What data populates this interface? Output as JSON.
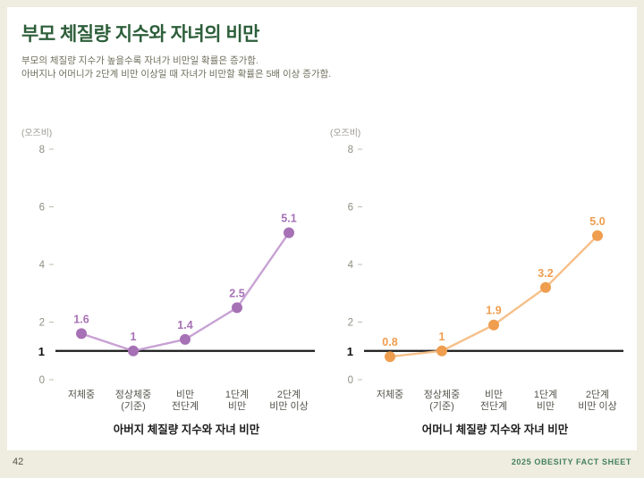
{
  "slide": {
    "title": "부모 체질량 지수와 자녀의 비만",
    "subtitle_line1": "부모의 체질량 지수가 높을수록 자녀가 비만일 확률은 증가함.",
    "subtitle_line2": "아버지나 어머니가 2단계 비만 이상일 때 자녀가 비만할 확률은 5배 이상 증가함.",
    "page_number": "42",
    "footer": "2025 OBESITY FACT SHEET"
  },
  "colors": {
    "title_green": "#2d5e3a",
    "footer_green": "#43815a",
    "background": "#efece0",
    "baseline": "#1a1a1a",
    "tick_text": "#8f8e83",
    "category_text": "#55544c"
  },
  "chart_data": [
    {
      "type": "line",
      "title": "아버지 체질량 지수와 자녀 비만",
      "unit_label": "(오즈비)",
      "categories": [
        "저체중",
        "정상체중\n(기준)",
        "비만\n전단계",
        "1단계\n비만",
        "2단계\n비만 이상"
      ],
      "values": [
        1.6,
        1,
        1.4,
        2.5,
        5.1
      ],
      "labels": [
        "1.6",
        "1",
        "1.4",
        "2.5",
        "5.1"
      ],
      "ylim": [
        0,
        8
      ],
      "yticks": [
        0,
        2,
        4,
        6,
        8
      ],
      "reference_line": 1,
      "color": "#a671b5",
      "line_color": "#c7a2d3",
      "legend_position": "none",
      "grid": false
    },
    {
      "type": "line",
      "title": "어머니 체질량 지수와 자녀 비만",
      "unit_label": "(오즈비)",
      "categories": [
        "저체중",
        "정상체중\n(기준)",
        "비만\n전단계",
        "1단계\n비만",
        "2단계\n비만 이상"
      ],
      "values": [
        0.8,
        1,
        1.9,
        3.2,
        5.0
      ],
      "labels": [
        "0.8",
        "1",
        "1.9",
        "3.2",
        "5.0"
      ],
      "ylim": [
        0,
        8
      ],
      "yticks": [
        0,
        2,
        4,
        6,
        8
      ],
      "reference_line": 1,
      "color": "#ef9d4e",
      "line_color": "#f6c089",
      "legend_position": "none",
      "grid": false
    }
  ]
}
